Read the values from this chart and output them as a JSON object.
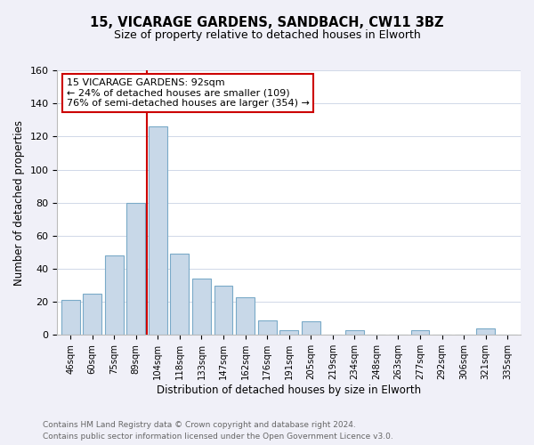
{
  "title": "15, VICARAGE GARDENS, SANDBACH, CW11 3BZ",
  "subtitle": "Size of property relative to detached houses in Elworth",
  "xlabel": "Distribution of detached houses by size in Elworth",
  "ylabel": "Number of detached properties",
  "bar_labels": [
    "46sqm",
    "60sqm",
    "75sqm",
    "89sqm",
    "104sqm",
    "118sqm",
    "133sqm",
    "147sqm",
    "162sqm",
    "176sqm",
    "191sqm",
    "205sqm",
    "219sqm",
    "234sqm",
    "248sqm",
    "263sqm",
    "277sqm",
    "292sqm",
    "306sqm",
    "321sqm",
    "335sqm"
  ],
  "bar_values": [
    21,
    25,
    48,
    80,
    126,
    49,
    34,
    30,
    23,
    9,
    3,
    8,
    0,
    3,
    0,
    0,
    3,
    0,
    0,
    4,
    0
  ],
  "bar_color": "#c8d8e8",
  "bar_edge_color": "#7aaac8",
  "ylim": [
    0,
    160
  ],
  "yticks": [
    0,
    20,
    40,
    60,
    80,
    100,
    120,
    140,
    160
  ],
  "property_line_color": "#cc0000",
  "annotation_title": "15 VICARAGE GARDENS: 92sqm",
  "annotation_line1": "← 24% of detached houses are smaller (109)",
  "annotation_line2": "76% of semi-detached houses are larger (354) →",
  "footer_line1": "Contains HM Land Registry data © Crown copyright and database right 2024.",
  "footer_line2": "Contains public sector information licensed under the Open Government Licence v3.0.",
  "background_color": "#f0f0f8",
  "plot_background_color": "#ffffff",
  "grid_color": "#d0d8e8"
}
